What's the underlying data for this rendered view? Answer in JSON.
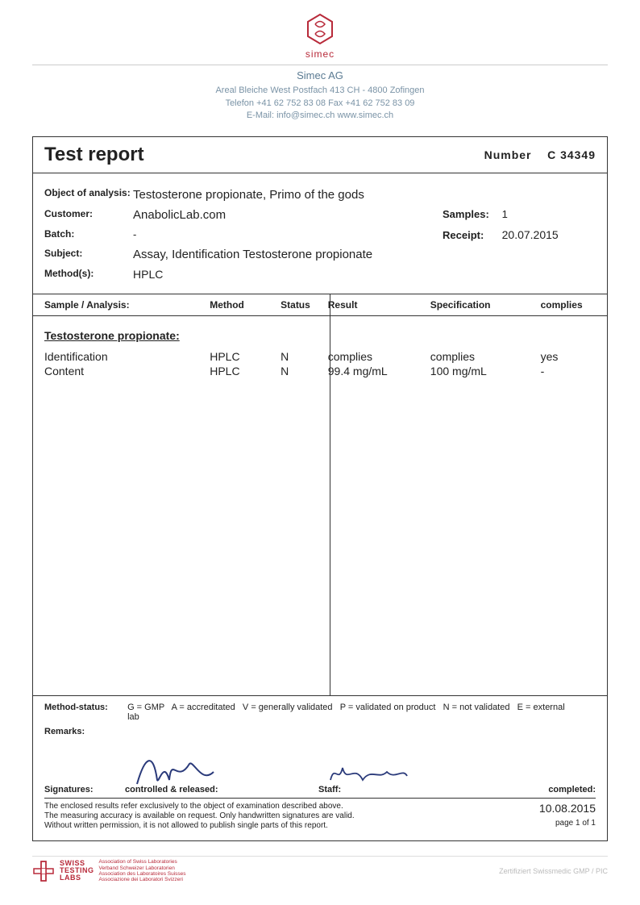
{
  "logo": {
    "name": "simec"
  },
  "company": {
    "name": "Simec AG",
    "address": "Areal Bleiche West  Postfach 413  CH - 4800 Zofingen",
    "contact": "Telefon +41 62 752 83 08   Fax +41 62 752 83 09",
    "email": "E-Mail: info@simec.ch   www.simec.ch"
  },
  "report": {
    "title": "Test report",
    "number_label": "Number",
    "number_value": "C   34349"
  },
  "meta": {
    "object_label": "Object of analysis:",
    "object_value": "Testosterone propionate, Primo of the gods",
    "customer_label": "Customer:",
    "customer_value": "AnabolicLab.com",
    "batch_label": "Batch:",
    "batch_value": "-",
    "subject_label": "Subject:",
    "subject_value": "Assay, Identification Testosterone propionate",
    "methods_label": "Method(s):",
    "methods_value": "HPLC",
    "samples_label": "Samples:",
    "samples_value": "1",
    "receipt_label": "Receipt:",
    "receipt_value": "20.07.2015"
  },
  "table": {
    "headers": {
      "sample": "Sample / Analysis:",
      "method": "Method",
      "status": "Status",
      "result": "Result",
      "spec": "Specification",
      "complies": "complies"
    },
    "group_title": "Testosterone propionate:",
    "rows": [
      {
        "name": "Identification",
        "method": "HPLC",
        "status": "N",
        "result": "complies",
        "spec": "complies",
        "complies": "yes"
      },
      {
        "name": "Content",
        "method": "HPLC",
        "status": "N",
        "result": "99.4 mg/mL",
        "spec": "100 mg/mL",
        "complies": "-"
      }
    ]
  },
  "footer": {
    "method_status_label": "Method-status:",
    "method_status_text": "G = GMP   A = accreditated   V = generally validated   P = validated on product   N = not validated   E = external lab",
    "remarks_label": "Remarks:",
    "signatures_label": "Signatures:",
    "controlled_label": "controlled & released:",
    "staff_label": "Staff:",
    "completed_label": "completed:",
    "completed_date": "10.08.2015",
    "page_info": "page 1 of 1",
    "disclaimer": "The enclosed results refer exclusively to the object of examination described above.\nThe measuring accuracy is available on request. Only handwritten signatures are valid.\nWithout written permission, it is not allowed to publish single parts of this report."
  },
  "bottom": {
    "swiss1": "SWISS",
    "swiss2": "TESTING",
    "swiss3": "LABS",
    "assoc": "Association of Swiss Laboratories\nVerband Schweizer Laboratorien\nAssociation des Laboratoires Suisses\nAssociazione dei Laboratori Svizzeri",
    "cert": "Zertifiziert Swissmedic GMP / PIC"
  },
  "colors": {
    "brand": "#b82a3a",
    "header_text": "#5a7a92",
    "sig_ink": "#2a3a7a"
  }
}
